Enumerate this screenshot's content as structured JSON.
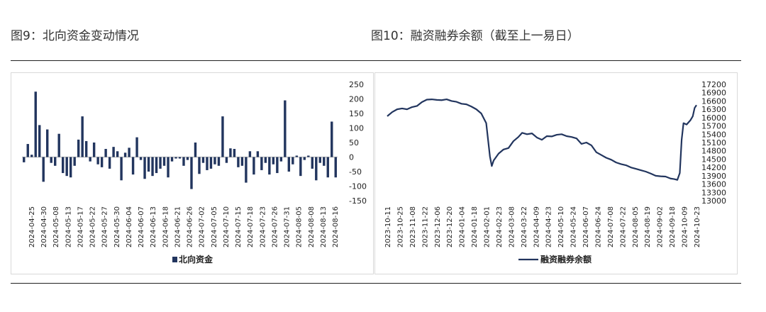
{
  "figures": [
    {
      "title": "图9：北向资金变动情况"
    },
    {
      "title": "图10：融资融券余额（截至上一易日）"
    }
  ],
  "chart_data": [
    {
      "type": "bar",
      "series_name": "北向资金",
      "color": "#22355e",
      "ylim": [
        -150,
        250
      ],
      "yticks": [
        -150,
        -100,
        -50,
        0,
        50,
        100,
        150,
        200,
        250
      ],
      "xtick_labels": [
        "2024-04-25",
        "2024-04-30",
        "2024-05-08",
        "2024-05-13",
        "2024-05-17",
        "2024-05-22",
        "2024-05-27",
        "2024-05-30",
        "2024-06-04",
        "2024-06-07",
        "2024-06-13",
        "2024-06-18",
        "2024-06-21",
        "2024-06-26",
        "2024-07-02",
        "2024-07-05",
        "2024-07-10",
        "2024-07-15",
        "2024-07-18",
        "2024-07-23",
        "2024-07-26",
        "2024-07-31",
        "2024-08-05",
        "2024-08-08",
        "2024-08-13",
        "2024-08-16"
      ],
      "values": [
        -18,
        45,
        8,
        225,
        110,
        -85,
        95,
        -20,
        -30,
        80,
        -55,
        -65,
        -70,
        -30,
        60,
        140,
        55,
        -15,
        50,
        -25,
        -35,
        28,
        -40,
        35,
        20,
        -80,
        15,
        32,
        -60,
        68,
        -10,
        -75,
        -50,
        -65,
        -55,
        -40,
        -30,
        -70,
        -15,
        -5,
        -5,
        -30,
        -10,
        -110,
        50,
        -58,
        -20,
        -45,
        -40,
        -25,
        -30,
        140,
        -20,
        30,
        28,
        -35,
        -30,
        -88,
        20,
        -60,
        20,
        -45,
        -20,
        -60,
        -25,
        -55,
        -15,
        195,
        -50,
        -25,
        5,
        -65,
        -10,
        5,
        -40,
        -80,
        -20,
        -30,
        -70,
        122,
        -70
      ]
    },
    {
      "type": "line",
      "series_name": "融资融券余额",
      "color": "#22355e",
      "ylim": [
        13000,
        17200
      ],
      "yticks": [
        13000,
        13300,
        13600,
        13900,
        14200,
        14500,
        14800,
        15100,
        15400,
        15700,
        16000,
        16300,
        16600,
        16900,
        17200
      ],
      "xtick_labels": [
        "2023-10-11",
        "2023-10-25",
        "2023-11-08",
        "2023-11-22",
        "2023-12-06",
        "2023-12-20",
        "2024-01-04",
        "2024-01-18",
        "2024-02-01",
        "2024-02-23",
        "2024-03-08",
        "2024-03-22",
        "2024-04-09",
        "2024-04-23",
        "2024-05-10",
        "2024-05-24",
        "2024-06-07",
        "2024-06-24",
        "2024-07-08",
        "2024-07-22",
        "2024-08-05",
        "2024-08-19",
        "2024-09-02",
        "2024-09-18",
        "2024-10-09",
        "2024-10-23"
      ],
      "x_range": [
        0,
        25
      ],
      "points": [
        [
          0,
          16050
        ],
        [
          0.4,
          16200
        ],
        [
          0.8,
          16300
        ],
        [
          1.2,
          16330
        ],
        [
          1.6,
          16300
        ],
        [
          2,
          16380
        ],
        [
          2.4,
          16420
        ],
        [
          2.8,
          16560
        ],
        [
          3.2,
          16650
        ],
        [
          3.6,
          16660
        ],
        [
          4,
          16640
        ],
        [
          4.4,
          16630
        ],
        [
          4.8,
          16660
        ],
        [
          5.2,
          16600
        ],
        [
          5.6,
          16570
        ],
        [
          6,
          16500
        ],
        [
          6.4,
          16480
        ],
        [
          6.8,
          16400
        ],
        [
          7.2,
          16300
        ],
        [
          7.6,
          16150
        ],
        [
          8,
          15800
        ],
        [
          8.15,
          15200
        ],
        [
          8.3,
          14600
        ],
        [
          8.45,
          14250
        ],
        [
          8.6,
          14450
        ],
        [
          9,
          14700
        ],
        [
          9.4,
          14850
        ],
        [
          9.8,
          14900
        ],
        [
          10.2,
          15150
        ],
        [
          10.6,
          15300
        ],
        [
          10.9,
          15450
        ],
        [
          11.3,
          15400
        ],
        [
          11.7,
          15430
        ],
        [
          12.1,
          15280
        ],
        [
          12.5,
          15200
        ],
        [
          12.9,
          15330
        ],
        [
          13.3,
          15320
        ],
        [
          13.7,
          15380
        ],
        [
          14.1,
          15400
        ],
        [
          14.5,
          15330
        ],
        [
          14.9,
          15300
        ],
        [
          15.3,
          15250
        ],
        [
          15.7,
          15050
        ],
        [
          16.1,
          15100
        ],
        [
          16.5,
          15000
        ],
        [
          16.9,
          14750
        ],
        [
          17.3,
          14650
        ],
        [
          17.7,
          14550
        ],
        [
          18.1,
          14480
        ],
        [
          18.5,
          14380
        ],
        [
          18.9,
          14320
        ],
        [
          19.3,
          14280
        ],
        [
          19.7,
          14200
        ],
        [
          20.1,
          14150
        ],
        [
          20.5,
          14100
        ],
        [
          20.9,
          14050
        ],
        [
          21.3,
          13980
        ],
        [
          21.7,
          13900
        ],
        [
          22.1,
          13880
        ],
        [
          22.5,
          13870
        ],
        [
          22.9,
          13800
        ],
        [
          23.2,
          13780
        ],
        [
          23.45,
          13750
        ],
        [
          23.65,
          14000
        ],
        [
          23.8,
          15200
        ],
        [
          23.95,
          15800
        ],
        [
          24.2,
          15750
        ],
        [
          24.5,
          15900
        ],
        [
          24.7,
          16050
        ],
        [
          24.85,
          16350
        ],
        [
          25,
          16450
        ]
      ]
    }
  ]
}
